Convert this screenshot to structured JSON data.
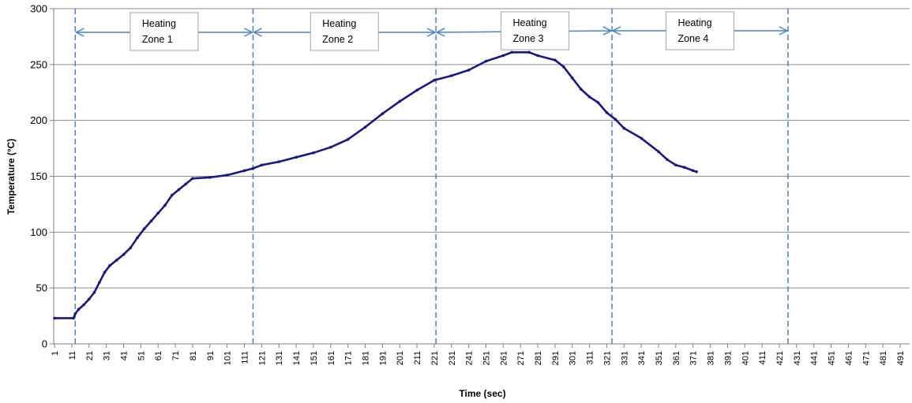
{
  "chart_data": {
    "type": "line",
    "title": "",
    "xlabel": "Time (sec)",
    "ylabel": "Temperature (°C)",
    "xlim": [
      1,
      496
    ],
    "ylim": [
      0,
      300
    ],
    "y_ticks": [
      0,
      50,
      100,
      150,
      200,
      250,
      300
    ],
    "x_tick_labels": [
      "1",
      "11",
      "21",
      "31",
      "41",
      "51",
      "61",
      "71",
      "81",
      "91",
      "101",
      "111",
      "121",
      "131",
      "141",
      "151",
      "161",
      "171",
      "181",
      "191",
      "201",
      "211",
      "221",
      "231",
      "241",
      "251",
      "261",
      "271",
      "281",
      "291",
      "301",
      "311",
      "321",
      "331",
      "341",
      "351",
      "361",
      "371",
      "381",
      "391",
      "401",
      "411",
      "421",
      "431",
      "441",
      "451",
      "461",
      "471",
      "481",
      "491"
    ],
    "grid": "horizontal",
    "legend": "none",
    "colors": {
      "series": "#1a1a7a",
      "zone_lines": "#4f81bd",
      "grid": "#8c8c8c"
    },
    "series": [
      {
        "points": [
          [
            1,
            23
          ],
          [
            12,
            23
          ],
          [
            13,
            27
          ],
          [
            15,
            31
          ],
          [
            18,
            35
          ],
          [
            21,
            40
          ],
          [
            24,
            46
          ],
          [
            27,
            55
          ],
          [
            30,
            64
          ],
          [
            33,
            70
          ],
          [
            37,
            75
          ],
          [
            41,
            80
          ],
          [
            45,
            86
          ],
          [
            49,
            95
          ],
          [
            53,
            103
          ],
          [
            57,
            110
          ],
          [
            61,
            117
          ],
          [
            65,
            124
          ],
          [
            69,
            133
          ],
          [
            73,
            138
          ],
          [
            77,
            143
          ],
          [
            81,
            148
          ],
          [
            91,
            149
          ],
          [
            101,
            151
          ],
          [
            111,
            155
          ],
          [
            116,
            157
          ],
          [
            121,
            160
          ],
          [
            131,
            163
          ],
          [
            141,
            167
          ],
          [
            151,
            171
          ],
          [
            161,
            176
          ],
          [
            171,
            183
          ],
          [
            181,
            194
          ],
          [
            191,
            206
          ],
          [
            201,
            217
          ],
          [
            211,
            227
          ],
          [
            221,
            236
          ],
          [
            231,
            240
          ],
          [
            241,
            245
          ],
          [
            251,
            253
          ],
          [
            261,
            258
          ],
          [
            266,
            261
          ],
          [
            276,
            261
          ],
          [
            281,
            258
          ],
          [
            291,
            254
          ],
          [
            296,
            248
          ],
          [
            301,
            238
          ],
          [
            306,
            228
          ],
          [
            311,
            221
          ],
          [
            316,
            216
          ],
          [
            321,
            207
          ],
          [
            326,
            201
          ],
          [
            331,
            193
          ],
          [
            341,
            184
          ],
          [
            351,
            172
          ],
          [
            356,
            165
          ],
          [
            361,
            160
          ],
          [
            366,
            158
          ],
          [
            371,
            155
          ],
          [
            373,
            154
          ]
        ]
      }
    ],
    "zones": [
      {
        "label_line1": "Heating",
        "label_line2": "Zone 1",
        "start": 13,
        "end": 116
      },
      {
        "label_line1": "Heating",
        "label_line2": "Zone 2",
        "start": 116,
        "end": 222
      },
      {
        "label_line1": "Heating",
        "label_line2": "Zone 3",
        "start": 222,
        "end": 324
      },
      {
        "label_line1": "Heating",
        "label_line2": "Zone 4",
        "start": 324,
        "end": 426
      }
    ]
  }
}
